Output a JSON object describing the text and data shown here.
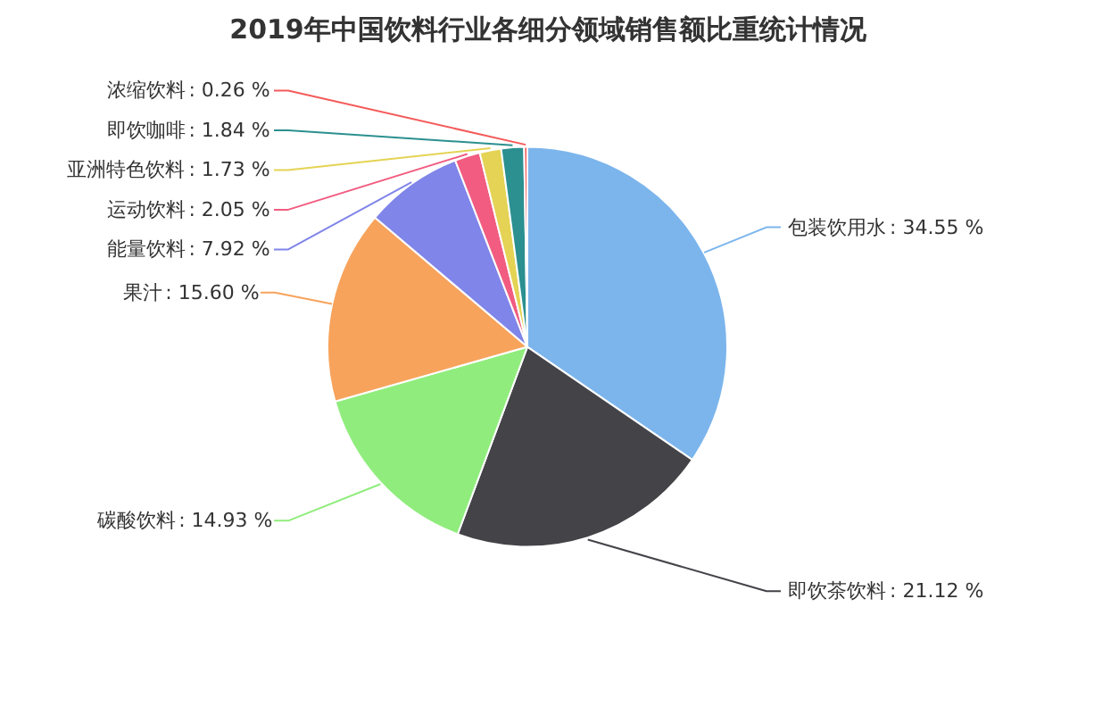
{
  "chart_data": {
    "type": "pie",
    "title": "2019年中国饮料行业各细分领域销售额比重统计情况",
    "categories": [
      "包装饮用水",
      "即饮茶饮料",
      "碳酸饮料",
      "果汁",
      "能量饮料",
      "运动饮料",
      "亚洲特色饮料",
      "即饮咖啡",
      "浓缩饮料"
    ],
    "values": [
      34.55,
      21.12,
      14.93,
      15.6,
      7.92,
      2.05,
      1.73,
      1.84,
      0.26
    ],
    "colors": [
      "#7cb5ec",
      "#434348",
      "#90ed7d",
      "#f7a35c",
      "#8085e9",
      "#f15c80",
      "#e4d354",
      "#2b908f",
      "#f45b5b"
    ],
    "value_labels": [
      ": 34.55 %",
      ": 21.12 %",
      ": 14.93 %",
      ": 15.60 %",
      ": 7.92 %",
      ": 2.05 %",
      ": 1.73 %",
      ": 1.84 %",
      ": 0.26 %"
    ]
  }
}
